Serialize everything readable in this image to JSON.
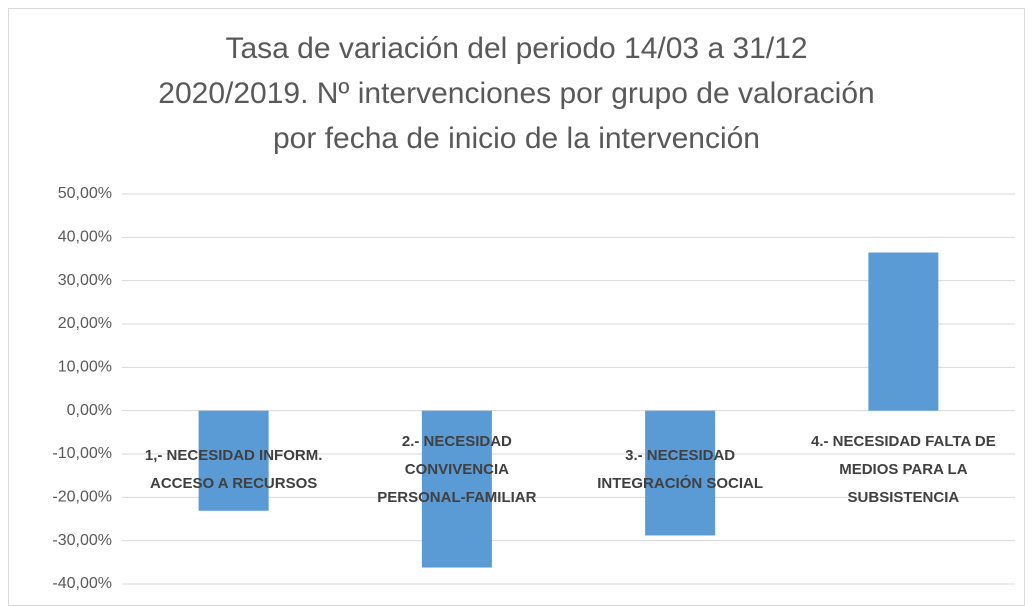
{
  "chart_data": {
    "type": "bar",
    "title": [
      "Tasa de variación del periodo 14/03 a 31/12",
      "2020/2019. Nº intervenciones por grupo de valoración",
      "por fecha de inicio de la intervención"
    ],
    "categories": [
      "1,- NECESIDAD INFORM. ACCESO A RECURSOS",
      "2.- NECESIDAD CONVIVENCIA PERSONAL-FAMILIAR",
      "3.- NECESIDAD INTEGRACIÓN SOCIAL",
      "4.- NECESIDAD FALTA DE MEDIOS PARA LA SUBSISTENCIA"
    ],
    "values": [
      -23.1,
      -36.2,
      -28.8,
      36.5
    ],
    "color": "#5b9bd5",
    "ylim": [
      -40,
      50
    ],
    "yticks": [
      {
        "value": -40,
        "label": "-40,00%"
      },
      {
        "value": -30,
        "label": "-30,00%"
      },
      {
        "value": -20,
        "label": "-20,00%"
      },
      {
        "value": -10,
        "label": "-10,00%"
      },
      {
        "value": 0,
        "label": "0,00%"
      },
      {
        "value": 10,
        "label": "10,00%"
      },
      {
        "value": 20,
        "label": "20,00%"
      },
      {
        "value": 30,
        "label": "30,00%"
      },
      {
        "value": 40,
        "label": "40,00%"
      },
      {
        "value": 50,
        "label": "50,00%"
      }
    ],
    "grid": true
  }
}
